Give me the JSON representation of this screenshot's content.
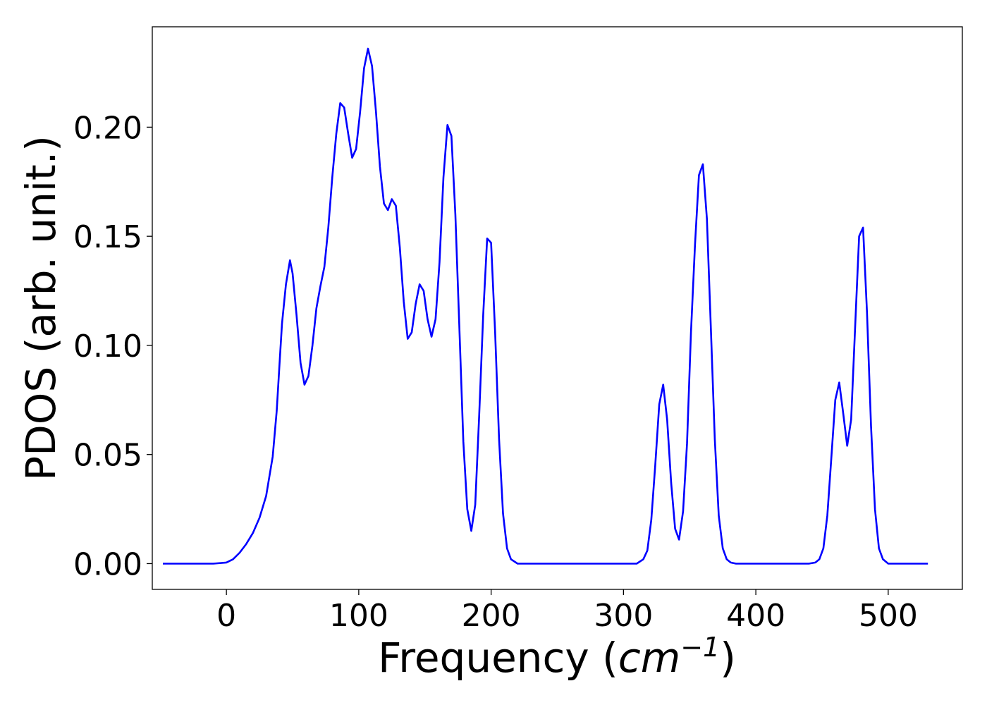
{
  "chart_data": {
    "type": "line",
    "title": "",
    "xlabel": "Frequency",
    "xlabel_unit_base": "cm",
    "xlabel_unit_exp": "−1",
    "ylabel": "PDOS (arb. unit.)",
    "xlim": [
      -56,
      556
    ],
    "ylim": [
      -0.0118,
      0.246
    ],
    "xticks": [
      0,
      100,
      200,
      300,
      400,
      500
    ],
    "xtick_labels": [
      "0",
      "100",
      "200",
      "300",
      "400",
      "500"
    ],
    "yticks": [
      0.0,
      0.05,
      0.1,
      0.15,
      0.2
    ],
    "ytick_labels": [
      "0.00",
      "0.05",
      "0.10",
      "0.15",
      "0.20"
    ],
    "grid": false,
    "legend": "none",
    "series": [
      {
        "color": "#0000ff",
        "x": [
          -48,
          -40,
          -30,
          -20,
          -10,
          0,
          5,
          10,
          15,
          20,
          25,
          30,
          35,
          38,
          40,
          42,
          45,
          48,
          50,
          53,
          56,
          59,
          62,
          65,
          68,
          71,
          74,
          77,
          80,
          83,
          86,
          89,
          92,
          95,
          98,
          101,
          104,
          107,
          110,
          113,
          116,
          119,
          122,
          125,
          128,
          131,
          134,
          137,
          140,
          143,
          146,
          149,
          152,
          155,
          158,
          161,
          164,
          167,
          170,
          173,
          176,
          179,
          182,
          185,
          188,
          191,
          194,
          197,
          200,
          203,
          206,
          209,
          212,
          215,
          220,
          240,
          260,
          280,
          300,
          310,
          315,
          318,
          321,
          324,
          327,
          330,
          333,
          336,
          339,
          342,
          345,
          348,
          351,
          354,
          357,
          360,
          363,
          366,
          369,
          372,
          375,
          378,
          381,
          385,
          400,
          420,
          440,
          445,
          448,
          451,
          454,
          457,
          460,
          463,
          466,
          469,
          472,
          475,
          478,
          481,
          484,
          487,
          490,
          493,
          496,
          500,
          520,
          530
        ],
        "y": [
          0,
          0,
          0,
          0,
          0,
          0.0005,
          0.002,
          0.005,
          0.009,
          0.014,
          0.021,
          0.031,
          0.049,
          0.07,
          0.09,
          0.11,
          0.128,
          0.139,
          0.133,
          0.114,
          0.092,
          0.082,
          0.086,
          0.1,
          0.117,
          0.127,
          0.136,
          0.154,
          0.177,
          0.197,
          0.211,
          0.209,
          0.197,
          0.186,
          0.19,
          0.207,
          0.227,
          0.236,
          0.228,
          0.207,
          0.182,
          0.165,
          0.162,
          0.167,
          0.164,
          0.145,
          0.12,
          0.103,
          0.106,
          0.119,
          0.128,
          0.125,
          0.112,
          0.104,
          0.112,
          0.138,
          0.177,
          0.201,
          0.196,
          0.16,
          0.108,
          0.056,
          0.025,
          0.015,
          0.027,
          0.068,
          0.114,
          0.149,
          0.147,
          0.106,
          0.057,
          0.023,
          0.007,
          0.002,
          0,
          0,
          0,
          0,
          0,
          0,
          0.002,
          0.006,
          0.02,
          0.045,
          0.073,
          0.082,
          0.066,
          0.037,
          0.016,
          0.011,
          0.024,
          0.055,
          0.106,
          0.146,
          0.178,
          0.183,
          0.158,
          0.108,
          0.057,
          0.022,
          0.007,
          0.002,
          0.0005,
          0,
          0,
          0,
          0,
          0.0005,
          0.002,
          0.007,
          0.022,
          0.048,
          0.075,
          0.083,
          0.069,
          0.054,
          0.066,
          0.108,
          0.15,
          0.154,
          0.115,
          0.063,
          0.025,
          0.007,
          0.002,
          0,
          0,
          0
        ]
      }
    ]
  }
}
